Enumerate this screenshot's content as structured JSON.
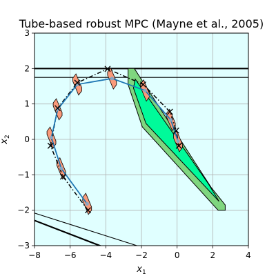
{
  "chart_data": {
    "type": "line",
    "title": "Tube-based robust MPC (Mayne et al., 2005)",
    "xlabel": {
      "base": "x",
      "sub": "1"
    },
    "ylabel": {
      "base": "x",
      "sub": "2"
    },
    "xlim": [
      -8,
      4
    ],
    "ylim": [
      -3,
      3
    ],
    "xticks": [
      "-8",
      "-6",
      "-4",
      "-2",
      "0",
      "2",
      "4"
    ],
    "yticks": [
      "-3",
      "-2",
      "-1",
      "0",
      "1",
      "2",
      "3"
    ],
    "grid": true,
    "colors": {
      "state_constraint": "#e0ffff",
      "terminal_outer": "#7fd67f",
      "terminal_inner": "#00fa9a",
      "tube": "#fa9a7a",
      "nominal": "#1f77b4",
      "actual": "#000000"
    },
    "state_constraint_lines": [
      {
        "points": [
          [
            -8.2,
            2.0
          ],
          [
            4.2,
            2.0
          ]
        ],
        "width": "thick"
      },
      {
        "points": [
          [
            -8.2,
            1.75
          ],
          [
            4.2,
            1.75
          ]
        ],
        "width": "thin"
      },
      {
        "points": [
          [
            -8.2,
            -2.05
          ],
          [
            -1.0,
            -3.2
          ]
        ],
        "width": "thin"
      },
      {
        "points": [
          [
            -8.2,
            -2.25
          ],
          [
            -3.3,
            -3.2
          ]
        ],
        "width": "thick"
      }
    ],
    "terminal_set_outer": [
      [
        -2.75,
        2.0
      ],
      [
        -2.4,
        2.0
      ],
      [
        1.9,
        -1.35
      ],
      [
        2.7,
        -1.85
      ],
      [
        2.7,
        -2.0
      ],
      [
        2.3,
        -2.0
      ],
      [
        -1.95,
        0.35
      ],
      [
        -2.75,
        1.55
      ]
    ],
    "terminal_set_inner": [
      [
        -2.35,
        1.7
      ],
      [
        1.75,
        -1.25
      ],
      [
        2.35,
        -1.75
      ],
      [
        -1.75,
        0.45
      ],
      [
        -2.45,
        1.45
      ]
    ],
    "tube_half_extent": {
      "dx": 0.25,
      "dy": 0.3
    },
    "series": [
      {
        "role": "nominal",
        "marker": "circle",
        "x": [
          -5.05,
          -6.5,
          -7.05,
          -6.7,
          -5.6,
          -3.65,
          -1.8,
          -0.35,
          0.05
        ],
        "y": [
          -1.82,
          -0.82,
          0.05,
          0.85,
          1.55,
          1.72,
          1.38,
          0.55,
          -0.05
        ]
      },
      {
        "role": "actual",
        "marker": "x",
        "x": [
          -5.0,
          -6.4,
          -7.1,
          -6.7,
          -5.6,
          -3.9,
          -1.9,
          -0.4,
          -0.05,
          0.1
        ],
        "y": [
          -2.0,
          -1.05,
          -0.18,
          0.88,
          1.6,
          1.99,
          1.55,
          0.78,
          0.25,
          -0.18
        ]
      }
    ]
  }
}
